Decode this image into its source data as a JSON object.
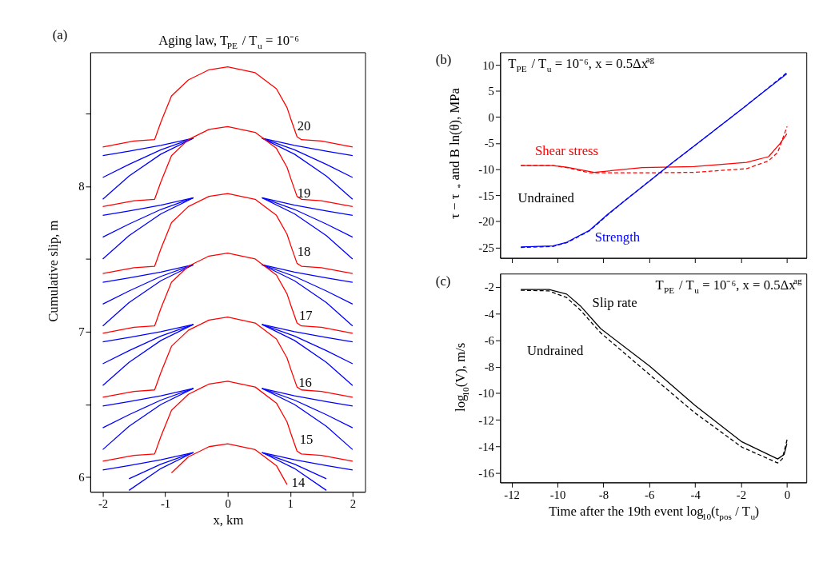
{
  "chart_data": [
    {
      "type": "line",
      "title": "Aging law, T$_{PE}$ / T$_{u}$ = 10⁻⁶",
      "xlabel": "x, km",
      "ylabel": "Cumulative slip, m",
      "xlim": [
        -2.2,
        2.2
      ],
      "xticks": [
        -2,
        -1,
        0,
        1,
        2
      ],
      "ylim": [
        5.9,
        8.92
      ],
      "yticks": [
        6,
        {
          "value": 6.5,
          "label": null
        },
        7,
        {
          "value": 7.5,
          "label": null
        },
        8,
        {
          "value": 8.5,
          "label": null
        }
      ],
      "grid": false,
      "annotations": [
        "(a)",
        "20",
        "19",
        "18",
        "17",
        "16",
        "15",
        "14"
      ],
      "series": [
        {
          "color": "#0000ff",
          "x": [
            -2,
            -1.58,
            -1.07,
            -0.55,
            0,
            0.55,
            1.07,
            1.58,
            2
          ],
          "values": [
            7.91,
            8.07,
            8.22,
            8.33,
            null,
            8.33,
            8.22,
            8.07,
            7.91
          ]
        },
        {
          "color": "#0000ff",
          "x": [
            -2,
            -1.58,
            -1.07,
            -0.55,
            0,
            0.55,
            1.07,
            1.58,
            2
          ],
          "values": [
            8.06,
            8.15,
            8.25,
            8.33,
            null,
            8.33,
            8.25,
            8.15,
            8.06
          ]
        },
        {
          "color": "#0000ff",
          "x": [
            -2,
            -1.58,
            -1.07,
            -0.55,
            0,
            0.55,
            1.07,
            1.58,
            2
          ],
          "values": [
            8.21,
            8.24,
            8.28,
            8.33,
            null,
            8.33,
            8.28,
            8.24,
            8.21
          ]
        },
        {
          "color": "#0000ff",
          "x": [
            -2,
            -1.58,
            -1.07,
            -0.55,
            0,
            0.55,
            1.07,
            1.58,
            2
          ],
          "values": [
            7.5,
            7.66,
            7.81,
            7.92,
            null,
            7.92,
            7.81,
            7.66,
            7.5
          ]
        },
        {
          "color": "#0000ff",
          "x": [
            -2,
            -1.58,
            -1.07,
            -0.55,
            0,
            0.55,
            1.07,
            1.58,
            2
          ],
          "values": [
            7.65,
            7.74,
            7.84,
            7.92,
            null,
            7.92,
            7.84,
            7.74,
            7.65
          ]
        },
        {
          "color": "#0000ff",
          "x": [
            -2,
            -1.58,
            -1.07,
            -0.55,
            0,
            0.55,
            1.07,
            1.58,
            2
          ],
          "values": [
            7.8,
            7.83,
            7.87,
            7.92,
            null,
            7.92,
            7.87,
            7.83,
            7.8
          ]
        },
        {
          "color": "#0000ff",
          "x": [
            -2,
            -1.58,
            -1.07,
            -0.55,
            0,
            0.55,
            1.07,
            1.58,
            2
          ],
          "values": [
            7.04,
            7.2,
            7.35,
            7.46,
            null,
            7.46,
            7.35,
            7.2,
            7.04
          ]
        },
        {
          "color": "#0000ff",
          "x": [
            -2,
            -1.58,
            -1.07,
            -0.55,
            0,
            0.55,
            1.07,
            1.58,
            2
          ],
          "values": [
            7.19,
            7.28,
            7.38,
            7.46,
            null,
            7.46,
            7.38,
            7.28,
            7.19
          ]
        },
        {
          "color": "#0000ff",
          "x": [
            -2,
            -1.58,
            -1.07,
            -0.55,
            0,
            0.55,
            1.07,
            1.58,
            2
          ],
          "values": [
            7.34,
            7.37,
            7.41,
            7.46,
            null,
            7.46,
            7.41,
            7.37,
            7.34
          ]
        },
        {
          "color": "#0000ff",
          "x": [
            -2,
            -1.58,
            -1.07,
            -0.55,
            0,
            0.55,
            1.07,
            1.58,
            2
          ],
          "values": [
            6.63,
            6.79,
            6.94,
            7.05,
            null,
            7.05,
            6.94,
            6.79,
            6.63
          ]
        },
        {
          "color": "#0000ff",
          "x": [
            -2,
            -1.58,
            -1.07,
            -0.55,
            0,
            0.55,
            1.07,
            1.58,
            2
          ],
          "values": [
            6.78,
            6.87,
            6.97,
            7.05,
            null,
            7.05,
            6.97,
            6.87,
            6.78
          ]
        },
        {
          "color": "#0000ff",
          "x": [
            -2,
            -1.58,
            -1.07,
            -0.55,
            0,
            0.55,
            1.07,
            1.58,
            2
          ],
          "values": [
            6.93,
            6.96,
            7.0,
            7.05,
            null,
            7.05,
            7.0,
            6.96,
            6.93
          ]
        },
        {
          "color": "#0000ff",
          "x": [
            -2,
            -1.58,
            -1.07,
            -0.55,
            0,
            0.55,
            1.07,
            1.58,
            2
          ],
          "values": [
            6.19,
            6.35,
            6.5,
            6.61,
            null,
            6.61,
            6.5,
            6.35,
            6.19
          ]
        },
        {
          "color": "#0000ff",
          "x": [
            -2,
            -1.58,
            -1.07,
            -0.55,
            0,
            0.55,
            1.07,
            1.58,
            2
          ],
          "values": [
            6.34,
            6.43,
            6.53,
            6.61,
            null,
            6.61,
            6.53,
            6.43,
            6.34
          ]
        },
        {
          "color": "#0000ff",
          "x": [
            -2,
            -1.58,
            -1.07,
            -0.55,
            0,
            0.55,
            1.07,
            1.58,
            2
          ],
          "values": [
            6.49,
            6.52,
            6.56,
            6.61,
            null,
            6.61,
            6.56,
            6.52,
            6.49
          ]
        },
        {
          "color": "#0000ff",
          "x": [
            -1.58,
            -1.07,
            -0.55,
            0,
            0.55,
            1.07,
            1.58
          ],
          "values": [
            5.91,
            6.06,
            6.17,
            null,
            6.17,
            6.06,
            5.91
          ]
        },
        {
          "color": "#0000ff",
          "x": [
            -1.58,
            -1.07,
            -0.55,
            0,
            0.55,
            1.07,
            1.58
          ],
          "values": [
            5.99,
            6.09,
            6.17,
            null,
            6.17,
            6.09,
            5.99
          ]
        },
        {
          "color": "#0000ff",
          "x": [
            -2,
            -1.58,
            -1.07,
            -0.55,
            0,
            0.55,
            1.07,
            1.58,
            2
          ],
          "values": [
            6.05,
            6.08,
            6.12,
            6.17,
            null,
            6.17,
            6.12,
            6.08,
            6.05
          ]
        },
        {
          "color": "#ff0000",
          "x": [
            -2,
            -1.5,
            -1.17,
            -1.07,
            -0.9,
            -0.63,
            -0.3,
            0,
            0.44,
            0.78,
            0.95,
            1.02,
            1.11,
            1.18,
            1.5,
            2
          ],
          "values": [
            8.27,
            8.31,
            8.32,
            8.44,
            8.62,
            8.73,
            8.8,
            8.82,
            8.78,
            8.67,
            8.54,
            8.45,
            8.34,
            8.32,
            8.31,
            8.27
          ]
        },
        {
          "color": "#ff0000",
          "x": [
            -2,
            -1.5,
            -1.17,
            -1.07,
            -0.9,
            -0.63,
            -0.3,
            0,
            0.44,
            0.78,
            0.95,
            1.02,
            1.11,
            1.18,
            1.5,
            2
          ],
          "values": [
            7.86,
            7.9,
            7.91,
            8.03,
            8.21,
            8.32,
            8.39,
            8.41,
            8.37,
            8.26,
            8.13,
            8.04,
            7.93,
            7.91,
            7.9,
            7.86
          ]
        },
        {
          "color": "#ff0000",
          "x": [
            -2,
            -1.5,
            -1.17,
            -1.07,
            -0.9,
            -0.63,
            -0.3,
            0,
            0.44,
            0.78,
            0.95,
            1.02,
            1.11,
            1.18,
            1.5,
            2
          ],
          "values": [
            7.4,
            7.44,
            7.45,
            7.57,
            7.75,
            7.86,
            7.93,
            7.95,
            7.91,
            7.8,
            7.67,
            7.58,
            7.47,
            7.45,
            7.44,
            7.4
          ]
        },
        {
          "color": "#ff0000",
          "x": [
            -2,
            -1.5,
            -1.17,
            -1.07,
            -0.9,
            -0.63,
            -0.3,
            0,
            0.44,
            0.78,
            0.95,
            1.02,
            1.11,
            1.18,
            1.5,
            2
          ],
          "values": [
            6.99,
            7.03,
            7.04,
            7.16,
            7.34,
            7.45,
            7.52,
            7.54,
            7.5,
            7.39,
            7.26,
            7.17,
            7.06,
            7.04,
            7.03,
            6.99
          ]
        },
        {
          "color": "#ff0000",
          "x": [
            -2,
            -1.5,
            -1.17,
            -1.07,
            -0.9,
            -0.63,
            -0.3,
            0,
            0.44,
            0.78,
            0.95,
            1.02,
            1.11,
            1.18,
            1.5,
            2
          ],
          "values": [
            6.55,
            6.59,
            6.6,
            6.72,
            6.9,
            7.01,
            7.08,
            7.1,
            7.06,
            6.95,
            6.82,
            6.73,
            6.62,
            6.6,
            6.59,
            6.55
          ]
        },
        {
          "color": "#ff0000",
          "x": [
            -2,
            -1.5,
            -1.17,
            -1.07,
            -0.9,
            -0.63,
            -0.3,
            0,
            0.44,
            0.78,
            0.95,
            1.02,
            1.11,
            1.18,
            1.5,
            2
          ],
          "values": [
            6.11,
            6.15,
            6.16,
            6.28,
            6.46,
            6.57,
            6.64,
            6.66,
            6.62,
            6.51,
            6.38,
            6.29,
            6.18,
            6.16,
            6.15,
            6.11
          ]
        },
        {
          "color": "#ff0000",
          "x": [
            -0.9,
            -0.63,
            -0.3,
            0,
            0.44,
            0.78,
            0.95
          ],
          "values": [
            6.03,
            6.14,
            6.21,
            6.23,
            6.19,
            6.08,
            5.95
          ]
        }
      ]
    },
    {
      "type": "line",
      "title": "T$_{PE}$ / T$_{u}$ = 10⁻⁶, x = 0.5Δx$^{ag}$",
      "ylabel": "τ − τ$_{*}$ and B ln(θ), MPa",
      "xlim": [
        -12.5,
        0.85
      ],
      "xticks": [
        -12,
        -10,
        -8,
        -6,
        -4,
        -2,
        0
      ],
      "ylim": [
        -27,
        12.4
      ],
      "yticks": [
        -25,
        -20,
        -15,
        -10,
        -5,
        0,
        5,
        10
      ],
      "tick_labels": "y",
      "grid": false,
      "annotations": [
        "(b)",
        "Undrained"
      ],
      "series": [
        {
          "color": "#ff0000",
          "line_style": "dashed",
          "x": [
            -11.6,
            -10.2,
            -9.6,
            -8.6,
            -6.3,
            -4.05,
            -1.76,
            -0.8,
            -0.4,
            0.01
          ],
          "values": [
            -9.3,
            -9.3,
            -9.7,
            -10.7,
            -10.7,
            -10.6,
            -9.9,
            -8.4,
            -6.8,
            -1.8
          ]
        },
        {
          "name": "Shear stress",
          "color": "#ff0000",
          "line_style": "solid",
          "x": [
            -11.6,
            -10.2,
            -9.6,
            -8.4,
            -6.3,
            -4.05,
            -1.76,
            -0.8,
            -0.3,
            0
          ],
          "values": [
            -9.3,
            -9.3,
            -9.6,
            -10.6,
            -9.7,
            -9.5,
            -8.7,
            -7.6,
            -5.1,
            -3.2
          ]
        },
        {
          "color": "#0000ff",
          "line_style": "dashed",
          "x": [
            -11.6,
            -10.2,
            -9.6,
            -8.6,
            -7.8,
            -7,
            -6,
            -5,
            -4,
            -3,
            -2,
            -1,
            0
          ],
          "values": [
            -25.0,
            -24.8,
            -24.1,
            -21.8,
            -18.7,
            -15.8,
            -12.3,
            -8.8,
            -5.4,
            -2.0,
            1.4,
            4.9,
            8.5
          ]
        },
        {
          "name": "Strength",
          "color": "#0000ff",
          "line_style": "solid",
          "x": [
            -11.6,
            -10.2,
            -9.6,
            -8.6,
            -7.8,
            -7,
            -6,
            -5,
            -4,
            -3,
            -2,
            -1,
            0
          ],
          "values": [
            -24.9,
            -24.7,
            -24.0,
            -21.7,
            -18.6,
            -15.8,
            -12.3,
            -8.8,
            -5.4,
            -2.0,
            1.4,
            4.9,
            8.3
          ]
        }
      ]
    },
    {
      "type": "line",
      "title": "T$_{PE}$ / T$_{u}$ = 10⁻⁶, x = 0.5Δx$^{ag}$",
      "xlabel": "Time after the 19th event log$_{10}$(t$_{pos}$ / T$_{u}$)",
      "ylabel": "log$_{10}$(V), m/s",
      "xlim": [
        -12.5,
        0.85
      ],
      "xticks": [
        -12,
        -10,
        -8,
        -6,
        -4,
        -2,
        0
      ],
      "ylim": [
        -16.7,
        -1.0
      ],
      "yticks": [
        -16,
        -14,
        -12,
        -10,
        -8,
        -6,
        -4,
        -2
      ],
      "grid": false,
      "annotations": [
        "(c)",
        "Undrained"
      ],
      "series": [
        {
          "color": "#000000",
          "line_style": "dashed",
          "x": [
            -11.6,
            -10.37,
            -9.6,
            -9.0,
            -8.12,
            -5.97,
            -4.02,
            -1.96,
            -0.4,
            -0.2,
            0.01
          ],
          "values": [
            -2.25,
            -2.3,
            -2.8,
            -3.75,
            -5.45,
            -8.62,
            -11.46,
            -14.05,
            -15.24,
            -14.94,
            -13.48
          ]
        },
        {
          "name": "Slip rate",
          "color": "#000000",
          "line_style": "solid",
          "x": [
            -11.6,
            -10.37,
            -9.6,
            -9.0,
            -8.12,
            -5.97,
            -4.02,
            -1.96,
            -0.4,
            -0.12,
            0
          ],
          "values": [
            -2.2,
            -2.2,
            -2.54,
            -3.43,
            -5.13,
            -7.97,
            -10.89,
            -13.65,
            -14.94,
            -14.6,
            -13.8
          ]
        }
      ]
    }
  ]
}
